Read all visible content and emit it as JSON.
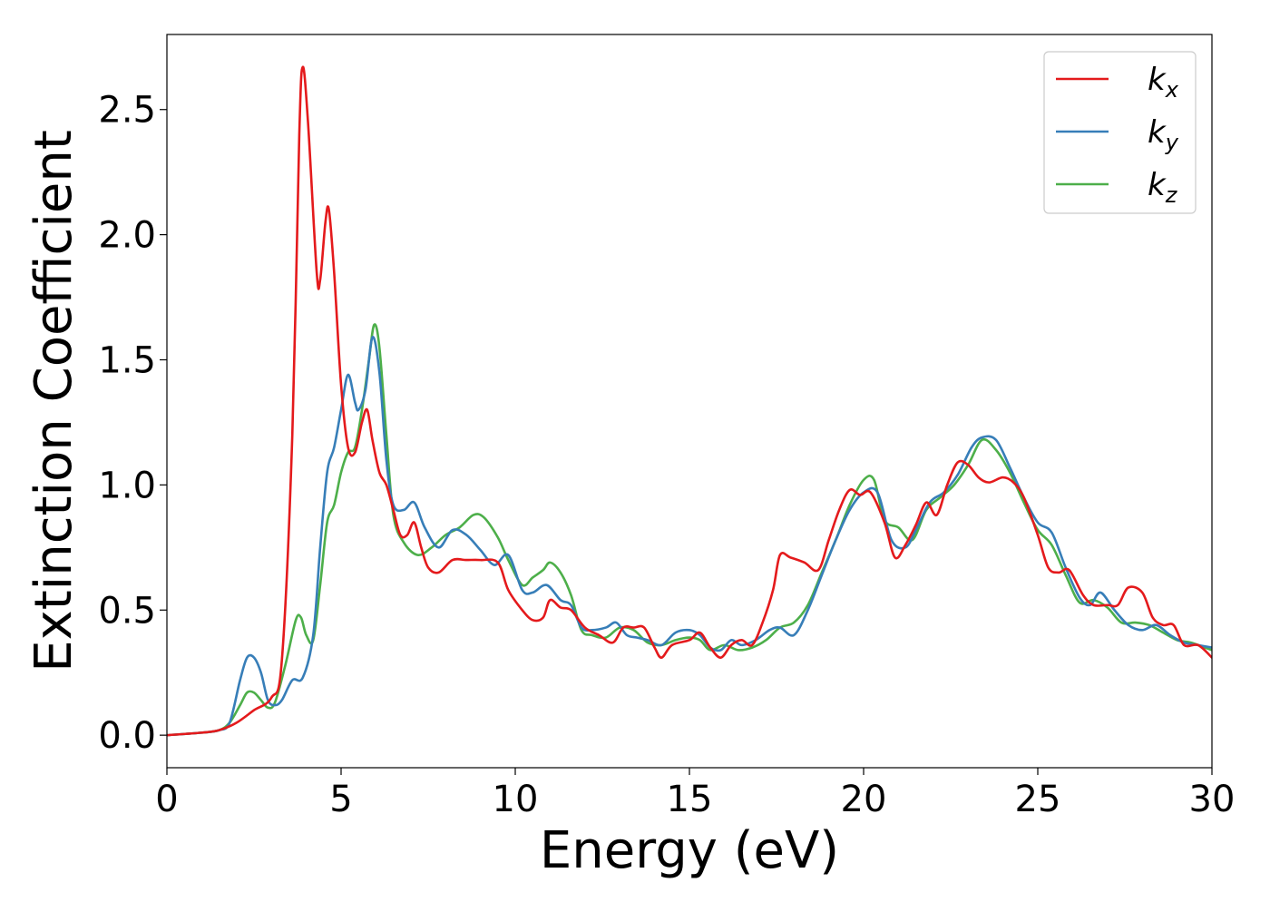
{
  "chart_data": {
    "type": "line",
    "title": "",
    "xlabel": "Energy (eV)",
    "ylabel": "Extinction Coefficient",
    "xlim": [
      0,
      30
    ],
    "ylim": [
      -0.13,
      2.8
    ],
    "xticks": [
      0,
      5,
      10,
      15,
      20,
      25,
      30
    ],
    "xtick_labels": [
      "0",
      "5",
      "10",
      "15",
      "20",
      "25",
      "30"
    ],
    "yticks": [
      0.0,
      0.5,
      1.0,
      1.5,
      2.0,
      2.5
    ],
    "ytick_labels": [
      "0.0",
      "0.5",
      "1.0",
      "1.5",
      "2.0",
      "2.5"
    ],
    "grid": false,
    "legend_position": "top-right",
    "series": [
      {
        "name": "k_x",
        "legend_base": "k",
        "legend_sub": "x",
        "color": "#e41a1c",
        "points": [
          [
            0,
            0.0
          ],
          [
            1,
            0.01
          ],
          [
            1.5,
            0.02
          ],
          [
            2,
            0.05
          ],
          [
            2.5,
            0.1
          ],
          [
            3,
            0.15
          ],
          [
            3.3,
            0.3
          ],
          [
            3.6,
            1.2
          ],
          [
            3.8,
            2.4
          ],
          [
            3.9,
            2.67
          ],
          [
            4.05,
            2.45
          ],
          [
            4.3,
            1.85
          ],
          [
            4.4,
            1.82
          ],
          [
            4.55,
            2.05
          ],
          [
            4.65,
            2.1
          ],
          [
            4.8,
            1.85
          ],
          [
            5.0,
            1.4
          ],
          [
            5.2,
            1.15
          ],
          [
            5.4,
            1.13
          ],
          [
            5.6,
            1.25
          ],
          [
            5.75,
            1.3
          ],
          [
            5.9,
            1.18
          ],
          [
            6.1,
            1.05
          ],
          [
            6.3,
            1.0
          ],
          [
            6.5,
            0.9
          ],
          [
            6.7,
            0.8
          ],
          [
            6.9,
            0.8
          ],
          [
            7.1,
            0.85
          ],
          [
            7.3,
            0.75
          ],
          [
            7.5,
            0.67
          ],
          [
            7.8,
            0.65
          ],
          [
            8.2,
            0.7
          ],
          [
            8.6,
            0.7
          ],
          [
            9.0,
            0.7
          ],
          [
            9.5,
            0.69
          ],
          [
            9.8,
            0.58
          ],
          [
            10.2,
            0.5
          ],
          [
            10.5,
            0.46
          ],
          [
            10.8,
            0.47
          ],
          [
            11.0,
            0.54
          ],
          [
            11.3,
            0.51
          ],
          [
            11.6,
            0.5
          ],
          [
            12.0,
            0.43
          ],
          [
            12.4,
            0.4
          ],
          [
            12.8,
            0.37
          ],
          [
            13.1,
            0.43
          ],
          [
            13.4,
            0.43
          ],
          [
            13.7,
            0.43
          ],
          [
            14.0,
            0.35
          ],
          [
            14.2,
            0.31
          ],
          [
            14.5,
            0.36
          ],
          [
            15.0,
            0.38
          ],
          [
            15.3,
            0.41
          ],
          [
            15.6,
            0.35
          ],
          [
            15.9,
            0.31
          ],
          [
            16.2,
            0.36
          ],
          [
            16.5,
            0.38
          ],
          [
            16.8,
            0.36
          ],
          [
            17.1,
            0.45
          ],
          [
            17.4,
            0.58
          ],
          [
            17.6,
            0.72
          ],
          [
            17.9,
            0.71
          ],
          [
            18.3,
            0.69
          ],
          [
            18.7,
            0.66
          ],
          [
            19.0,
            0.78
          ],
          [
            19.3,
            0.9
          ],
          [
            19.6,
            0.98
          ],
          [
            19.9,
            0.96
          ],
          [
            20.2,
            0.97
          ],
          [
            20.6,
            0.85
          ],
          [
            20.9,
            0.71
          ],
          [
            21.2,
            0.76
          ],
          [
            21.5,
            0.84
          ],
          [
            21.8,
            0.93
          ],
          [
            22.1,
            0.88
          ],
          [
            22.4,
            1.0
          ],
          [
            22.7,
            1.09
          ],
          [
            23.0,
            1.08
          ],
          [
            23.3,
            1.03
          ],
          [
            23.6,
            1.01
          ],
          [
            24.0,
            1.03
          ],
          [
            24.3,
            1.01
          ],
          [
            24.6,
            0.95
          ],
          [
            25.0,
            0.8
          ],
          [
            25.3,
            0.67
          ],
          [
            25.6,
            0.65
          ],
          [
            25.9,
            0.66
          ],
          [
            26.3,
            0.56
          ],
          [
            26.6,
            0.52
          ],
          [
            27.0,
            0.52
          ],
          [
            27.3,
            0.52
          ],
          [
            27.6,
            0.59
          ],
          [
            28.0,
            0.57
          ],
          [
            28.3,
            0.47
          ],
          [
            28.6,
            0.44
          ],
          [
            28.9,
            0.44
          ],
          [
            29.2,
            0.36
          ],
          [
            29.6,
            0.36
          ],
          [
            30.0,
            0.31
          ]
        ]
      },
      {
        "name": "k_y",
        "legend_base": "k",
        "legend_sub": "y",
        "color": "#377eb8",
        "points": [
          [
            0,
            0.0
          ],
          [
            1,
            0.01
          ],
          [
            1.5,
            0.02
          ],
          [
            1.8,
            0.05
          ],
          [
            2.1,
            0.22
          ],
          [
            2.3,
            0.31
          ],
          [
            2.5,
            0.31
          ],
          [
            2.7,
            0.25
          ],
          [
            2.9,
            0.14
          ],
          [
            3.1,
            0.12
          ],
          [
            3.3,
            0.14
          ],
          [
            3.6,
            0.22
          ],
          [
            3.9,
            0.23
          ],
          [
            4.2,
            0.4
          ],
          [
            4.4,
            0.75
          ],
          [
            4.6,
            1.05
          ],
          [
            4.8,
            1.15
          ],
          [
            5.0,
            1.3
          ],
          [
            5.2,
            1.44
          ],
          [
            5.4,
            1.33
          ],
          [
            5.5,
            1.3
          ],
          [
            5.7,
            1.38
          ],
          [
            5.9,
            1.59
          ],
          [
            6.1,
            1.45
          ],
          [
            6.3,
            1.1
          ],
          [
            6.5,
            0.92
          ],
          [
            6.8,
            0.9
          ],
          [
            7.1,
            0.93
          ],
          [
            7.4,
            0.83
          ],
          [
            7.8,
            0.75
          ],
          [
            8.2,
            0.82
          ],
          [
            8.6,
            0.8
          ],
          [
            9.0,
            0.74
          ],
          [
            9.4,
            0.68
          ],
          [
            9.8,
            0.72
          ],
          [
            10.2,
            0.58
          ],
          [
            10.5,
            0.57
          ],
          [
            10.9,
            0.6
          ],
          [
            11.3,
            0.54
          ],
          [
            11.6,
            0.52
          ],
          [
            11.9,
            0.43
          ],
          [
            12.2,
            0.42
          ],
          [
            12.6,
            0.43
          ],
          [
            12.9,
            0.45
          ],
          [
            13.2,
            0.4
          ],
          [
            13.5,
            0.39
          ],
          [
            13.8,
            0.38
          ],
          [
            14.2,
            0.36
          ],
          [
            14.6,
            0.41
          ],
          [
            15.0,
            0.42
          ],
          [
            15.3,
            0.4
          ],
          [
            15.6,
            0.35
          ],
          [
            15.9,
            0.34
          ],
          [
            16.2,
            0.38
          ],
          [
            16.5,
            0.36
          ],
          [
            16.9,
            0.38
          ],
          [
            17.3,
            0.42
          ],
          [
            17.6,
            0.43
          ],
          [
            18.0,
            0.4
          ],
          [
            18.4,
            0.5
          ],
          [
            18.8,
            0.64
          ],
          [
            19.2,
            0.78
          ],
          [
            19.6,
            0.9
          ],
          [
            20.0,
            0.97
          ],
          [
            20.4,
            0.97
          ],
          [
            20.8,
            0.78
          ],
          [
            21.2,
            0.75
          ],
          [
            21.5,
            0.82
          ],
          [
            21.9,
            0.93
          ],
          [
            22.3,
            0.97
          ],
          [
            22.7,
            1.04
          ],
          [
            23.1,
            1.15
          ],
          [
            23.4,
            1.19
          ],
          [
            23.8,
            1.18
          ],
          [
            24.2,
            1.07
          ],
          [
            24.6,
            0.95
          ],
          [
            25.0,
            0.85
          ],
          [
            25.4,
            0.81
          ],
          [
            25.8,
            0.67
          ],
          [
            26.2,
            0.55
          ],
          [
            26.5,
            0.52
          ],
          [
            26.8,
            0.57
          ],
          [
            27.2,
            0.5
          ],
          [
            27.6,
            0.44
          ],
          [
            28.0,
            0.42
          ],
          [
            28.4,
            0.44
          ],
          [
            28.8,
            0.4
          ],
          [
            29.2,
            0.37
          ],
          [
            29.6,
            0.36
          ],
          [
            30.0,
            0.35
          ]
        ]
      },
      {
        "name": "k_z",
        "legend_base": "k",
        "legend_sub": "z",
        "color": "#4daf4a",
        "points": [
          [
            0,
            0.0
          ],
          [
            1,
            0.01
          ],
          [
            1.5,
            0.02
          ],
          [
            1.8,
            0.05
          ],
          [
            2.1,
            0.12
          ],
          [
            2.3,
            0.17
          ],
          [
            2.5,
            0.17
          ],
          [
            2.7,
            0.14
          ],
          [
            2.9,
            0.11
          ],
          [
            3.1,
            0.13
          ],
          [
            3.4,
            0.28
          ],
          [
            3.7,
            0.46
          ],
          [
            3.85,
            0.47
          ],
          [
            4.0,
            0.4
          ],
          [
            4.2,
            0.38
          ],
          [
            4.4,
            0.6
          ],
          [
            4.6,
            0.85
          ],
          [
            4.8,
            0.92
          ],
          [
            5.0,
            1.05
          ],
          [
            5.2,
            1.13
          ],
          [
            5.4,
            1.15
          ],
          [
            5.6,
            1.3
          ],
          [
            5.8,
            1.5
          ],
          [
            5.95,
            1.64
          ],
          [
            6.1,
            1.55
          ],
          [
            6.3,
            1.2
          ],
          [
            6.5,
            0.88
          ],
          [
            6.8,
            0.77
          ],
          [
            7.2,
            0.72
          ],
          [
            7.6,
            0.75
          ],
          [
            8.0,
            0.8
          ],
          [
            8.4,
            0.83
          ],
          [
            8.8,
            0.88
          ],
          [
            9.1,
            0.87
          ],
          [
            9.5,
            0.79
          ],
          [
            9.8,
            0.7
          ],
          [
            10.2,
            0.6
          ],
          [
            10.5,
            0.63
          ],
          [
            10.8,
            0.66
          ],
          [
            11.0,
            0.69
          ],
          [
            11.3,
            0.65
          ],
          [
            11.6,
            0.56
          ],
          [
            11.9,
            0.42
          ],
          [
            12.2,
            0.4
          ],
          [
            12.6,
            0.39
          ],
          [
            13.0,
            0.43
          ],
          [
            13.4,
            0.42
          ],
          [
            13.8,
            0.37
          ],
          [
            14.2,
            0.36
          ],
          [
            14.6,
            0.38
          ],
          [
            15.0,
            0.39
          ],
          [
            15.3,
            0.38
          ],
          [
            15.6,
            0.34
          ],
          [
            16.0,
            0.36
          ],
          [
            16.4,
            0.34
          ],
          [
            16.8,
            0.35
          ],
          [
            17.2,
            0.38
          ],
          [
            17.6,
            0.43
          ],
          [
            18.0,
            0.45
          ],
          [
            18.4,
            0.52
          ],
          [
            18.8,
            0.65
          ],
          [
            19.2,
            0.78
          ],
          [
            19.6,
            0.92
          ],
          [
            20.0,
            1.02
          ],
          [
            20.3,
            1.02
          ],
          [
            20.6,
            0.86
          ],
          [
            21.0,
            0.83
          ],
          [
            21.4,
            0.78
          ],
          [
            21.8,
            0.9
          ],
          [
            22.2,
            0.95
          ],
          [
            22.6,
            1.0
          ],
          [
            23.0,
            1.08
          ],
          [
            23.4,
            1.18
          ],
          [
            23.8,
            1.14
          ],
          [
            24.2,
            1.05
          ],
          [
            24.6,
            0.93
          ],
          [
            25.0,
            0.82
          ],
          [
            25.4,
            0.76
          ],
          [
            25.8,
            0.64
          ],
          [
            26.2,
            0.53
          ],
          [
            26.6,
            0.54
          ],
          [
            27.0,
            0.51
          ],
          [
            27.4,
            0.45
          ],
          [
            27.8,
            0.45
          ],
          [
            28.2,
            0.44
          ],
          [
            28.6,
            0.41
          ],
          [
            29.0,
            0.38
          ],
          [
            29.4,
            0.37
          ],
          [
            29.8,
            0.35
          ],
          [
            30.0,
            0.34
          ]
        ]
      }
    ]
  }
}
